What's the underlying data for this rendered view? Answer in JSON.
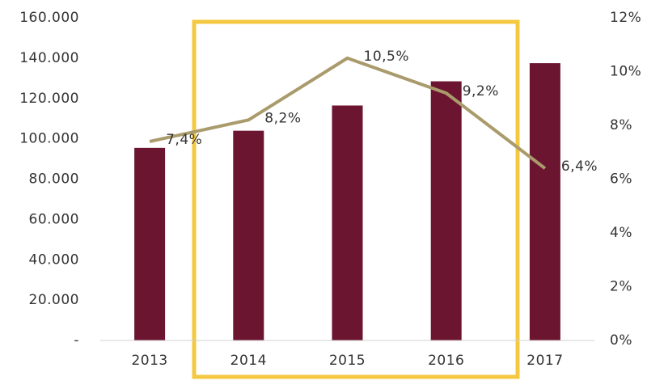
{
  "chart_data": {
    "type": "bar",
    "categories": [
      "2013",
      "2014",
      "2015",
      "2016",
      "2017"
    ],
    "series": [
      {
        "type": "bar",
        "color": "#6b1530",
        "values": [
          95500,
          104000,
          116500,
          128500,
          137500
        ]
      },
      {
        "type": "line",
        "axis": "y2",
        "color": "#a99b6b",
        "values": [
          7.4,
          8.2,
          10.5,
          9.2,
          6.4
        ],
        "value_labels": [
          "7,4%",
          "8,2%",
          "10,5%",
          "9,2%",
          "6,4%"
        ]
      }
    ],
    "ylim": [
      0,
      160000
    ],
    "yticks": [
      {
        "value": 0,
        "label": "-"
      },
      {
        "value": 20000,
        "label": "20.000"
      },
      {
        "value": 40000,
        "label": "40.000"
      },
      {
        "value": 60000,
        "label": "60.000"
      },
      {
        "value": 80000,
        "label": "80.000"
      },
      {
        "value": 100000,
        "label": "100.000"
      },
      {
        "value": 120000,
        "label": "120.000"
      },
      {
        "value": 140000,
        "label": "140.000"
      },
      {
        "value": 160000,
        "label": "160.000"
      }
    ],
    "y2lim": [
      0,
      12
    ],
    "y2ticks": [
      {
        "value": 0,
        "label": "0%"
      },
      {
        "value": 2,
        "label": "2%"
      },
      {
        "value": 4,
        "label": "4%"
      },
      {
        "value": 6,
        "label": "6%"
      },
      {
        "value": 8,
        "label": "8%"
      },
      {
        "value": 10,
        "label": "10%"
      },
      {
        "value": 12,
        "label": "12%"
      }
    ]
  }
}
